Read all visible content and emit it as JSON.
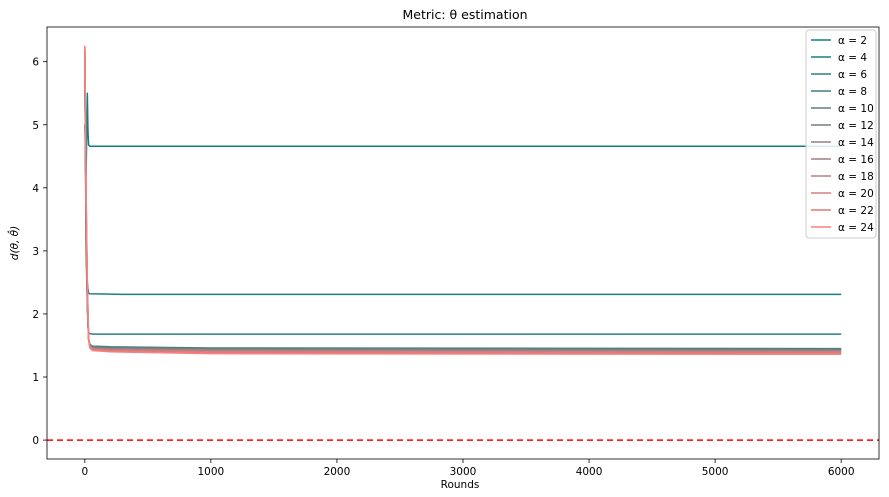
{
  "chart_data": {
    "type": "line",
    "title": "Metric: θ estimation",
    "xlabel": "Rounds",
    "ylabel": "d(θ, θ̂)",
    "xlim": [
      -300,
      6300
    ],
    "ylim": [
      -0.3,
      6.55
    ],
    "xticks": [
      0,
      1000,
      2000,
      3000,
      4000,
      5000,
      6000
    ],
    "yticks": [
      0,
      1,
      2,
      3,
      4,
      5,
      6
    ],
    "reference_line": {
      "y": 0,
      "color": "#ff0000",
      "style": "dashed"
    },
    "legend_position": "top-right",
    "series": [
      {
        "name": "α = 2",
        "color": "#0f7f80",
        "x": [
          0,
          10,
          20,
          25,
          30,
          40,
          60,
          6000
        ],
        "y": [
          5.0,
          4.2,
          5.5,
          4.9,
          4.68,
          4.66,
          4.66,
          4.66
        ]
      },
      {
        "name": "α = 4",
        "color": "#1d7f7f",
        "x": [
          0,
          10,
          20,
          25,
          30,
          40,
          300,
          6000
        ],
        "y": [
          6.0,
          3.5,
          2.5,
          2.4,
          2.33,
          2.32,
          2.31,
          2.31
        ]
      },
      {
        "name": "α = 6",
        "color": "#2c8080",
        "x": [
          0,
          10,
          20,
          25,
          30,
          40,
          60,
          6000
        ],
        "y": [
          6.0,
          3.0,
          2.2,
          1.8,
          1.7,
          1.69,
          1.68,
          1.68
        ]
      },
      {
        "name": "α = 8",
        "color": "#3f7f7f",
        "x": [
          0,
          10,
          20,
          30,
          40,
          60,
          200,
          1000,
          6000
        ],
        "y": [
          6.1,
          3.2,
          2.1,
          1.6,
          1.52,
          1.49,
          1.48,
          1.46,
          1.45
        ]
      },
      {
        "name": "α = 10",
        "color": "#588080",
        "x": [
          0,
          10,
          20,
          30,
          40,
          60,
          200,
          1000,
          6000
        ],
        "y": [
          6.1,
          3.3,
          2.2,
          1.6,
          1.51,
          1.48,
          1.47,
          1.45,
          1.44
        ]
      },
      {
        "name": "α = 12",
        "color": "#728181",
        "x": [
          0,
          10,
          20,
          30,
          40,
          60,
          200,
          1000,
          6000
        ],
        "y": [
          6.1,
          3.4,
          2.2,
          1.6,
          1.5,
          1.47,
          1.46,
          1.44,
          1.43
        ]
      },
      {
        "name": "α = 14",
        "color": "#928080",
        "x": [
          0,
          10,
          20,
          30,
          40,
          60,
          200,
          1000,
          6000
        ],
        "y": [
          6.2,
          3.5,
          2.3,
          1.6,
          1.5,
          1.46,
          1.45,
          1.43,
          1.42
        ]
      },
      {
        "name": "α = 16",
        "color": "#a57f7f",
        "x": [
          0,
          10,
          20,
          30,
          40,
          60,
          200,
          1000,
          6000
        ],
        "y": [
          6.2,
          3.6,
          2.3,
          1.6,
          1.49,
          1.45,
          1.44,
          1.42,
          1.41
        ]
      },
      {
        "name": "α = 18",
        "color": "#b88080",
        "x": [
          0,
          10,
          20,
          30,
          40,
          60,
          200,
          1000,
          6000
        ],
        "y": [
          6.2,
          3.7,
          2.4,
          1.6,
          1.49,
          1.45,
          1.43,
          1.41,
          1.4
        ]
      },
      {
        "name": "α = 20",
        "color": "#d18080",
        "x": [
          0,
          10,
          20,
          30,
          40,
          60,
          200,
          1000,
          6000
        ],
        "y": [
          6.2,
          3.8,
          2.4,
          1.6,
          1.48,
          1.44,
          1.42,
          1.4,
          1.39
        ]
      },
      {
        "name": "α = 22",
        "color": "#ef7373",
        "x": [
          0,
          10,
          20,
          30,
          40,
          60,
          200,
          1000,
          6000
        ],
        "y": [
          6.25,
          3.8,
          2.5,
          1.6,
          1.47,
          1.43,
          1.41,
          1.38,
          1.37
        ]
      },
      {
        "name": "α = 24",
        "color": "#f88080",
        "x": [
          0,
          10,
          20,
          30,
          40,
          60,
          200,
          1000,
          6000
        ],
        "y": [
          6.25,
          4.0,
          2.5,
          1.6,
          1.46,
          1.42,
          1.4,
          1.37,
          1.36
        ]
      }
    ]
  }
}
